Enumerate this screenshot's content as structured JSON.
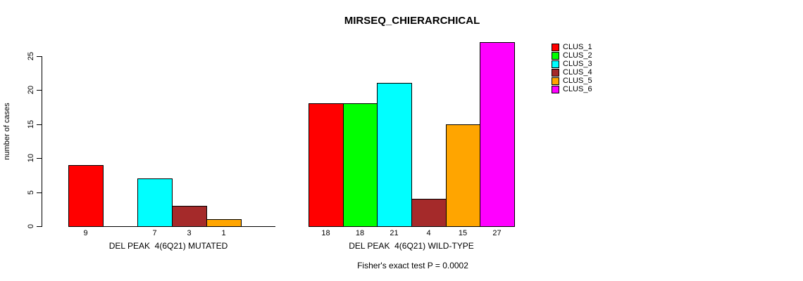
{
  "chart_data": {
    "type": "bar",
    "title": "MIRSEQ_CHIERARCHICAL",
    "ylabel": "number of cases",
    "xlabel": "",
    "annotation": "Fisher's exact test P = 0.0002",
    "ylim": [
      0,
      27
    ],
    "yticks": [
      0,
      5,
      10,
      15,
      20,
      25
    ],
    "grid": false,
    "legend_position": "right",
    "groups": [
      "DEL PEAK  4(6Q21) MUTATED",
      "DEL PEAK  4(6Q21) WILD-TYPE"
    ],
    "series": [
      {
        "name": "CLUS_1",
        "color": "#FF0000",
        "values": [
          9,
          18
        ]
      },
      {
        "name": "CLUS_2",
        "color": "#00FF00",
        "values": [
          0,
          18
        ]
      },
      {
        "name": "CLUS_3",
        "color": "#00FFFF",
        "values": [
          7,
          21
        ]
      },
      {
        "name": "CLUS_4",
        "color": "#A52A2A",
        "values": [
          3,
          4
        ]
      },
      {
        "name": "CLUS_5",
        "color": "#FFA500",
        "values": [
          1,
          15
        ]
      },
      {
        "name": "CLUS_6",
        "color": "#FF00FF",
        "values": [
          0,
          27
        ]
      }
    ],
    "bar_value_labels": {
      "mutated": [
        "9",
        "",
        "7",
        "3",
        "1",
        ""
      ],
      "wild_type": [
        "18",
        "18",
        "21",
        "4",
        "15",
        "27"
      ]
    },
    "axis_text_color": "#000000",
    "background_color": "#FFFFFF"
  }
}
